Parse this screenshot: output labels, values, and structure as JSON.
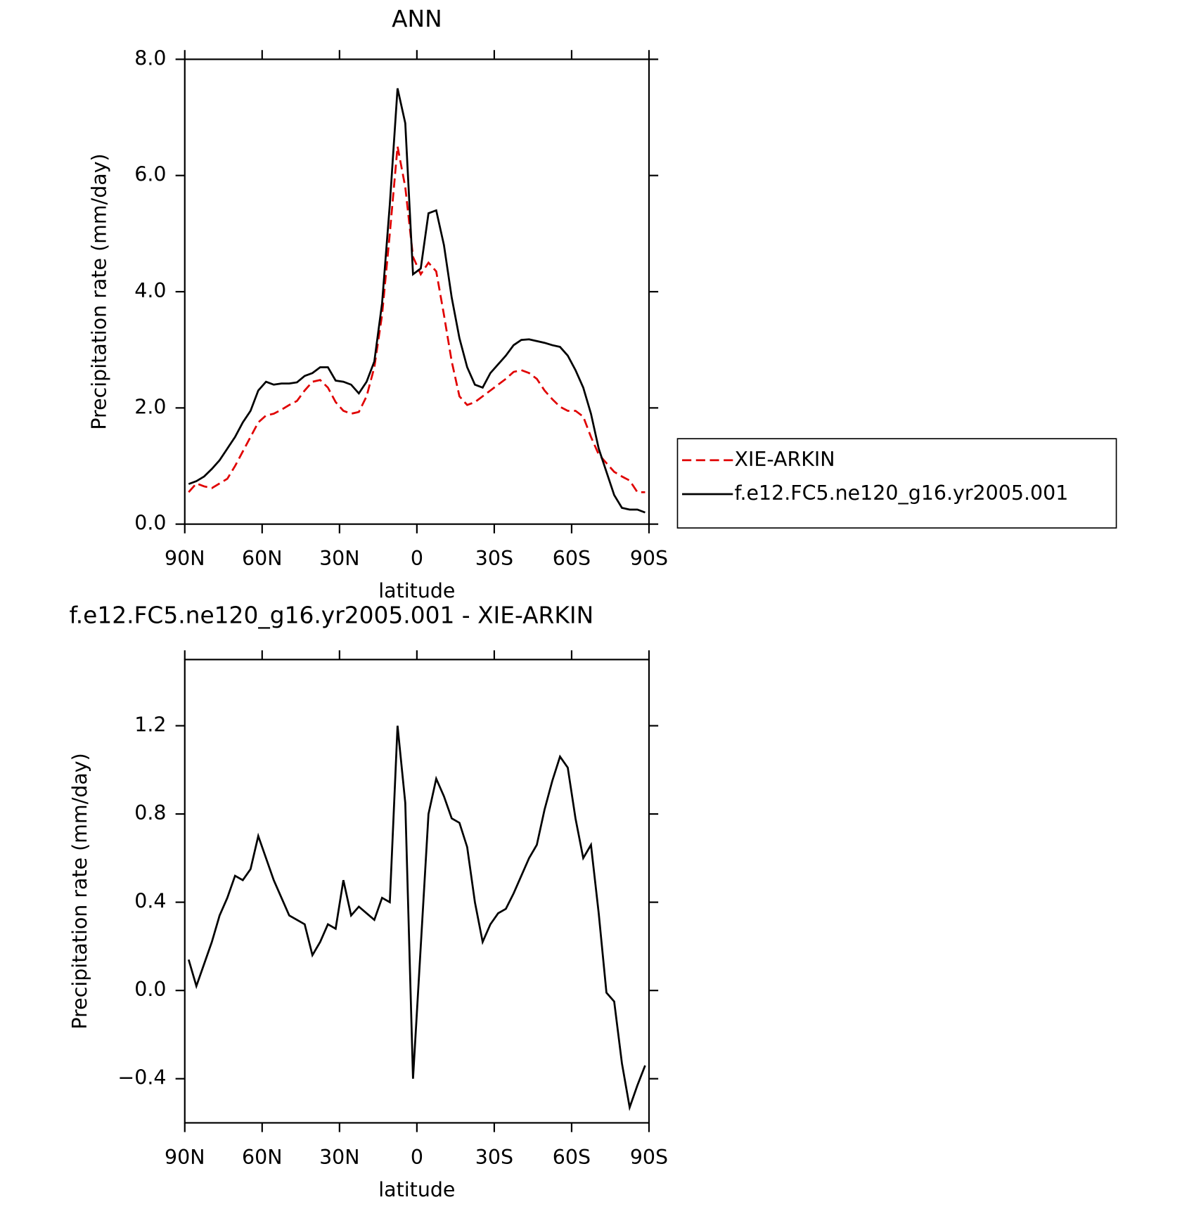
{
  "chart_data": [
    {
      "type": "line",
      "title": "ANN",
      "xlabel": "latitude",
      "ylabel": "Precipitation rate (mm/day)",
      "x": [
        88.5,
        85.5,
        82.5,
        79.5,
        76.5,
        73.5,
        70.5,
        67.5,
        64.5,
        61.5,
        58.5,
        55.5,
        52.5,
        49.5,
        46.5,
        43.5,
        40.5,
        37.5,
        34.5,
        31.5,
        28.5,
        25.5,
        22.5,
        19.5,
        16.5,
        13.5,
        10.5,
        7.5,
        4.5,
        1.5,
        -1.5,
        -4.5,
        -7.5,
        -10.5,
        -13.5,
        -16.5,
        -19.5,
        -22.5,
        -25.5,
        -28.5,
        -31.5,
        -34.5,
        -37.5,
        -40.5,
        -43.5,
        -46.5,
        -49.5,
        -52.5,
        -55.5,
        -58.5,
        -61.5,
        -64.5,
        -67.5,
        -70.5,
        -73.5,
        -76.5,
        -79.5,
        -82.5,
        -85.5,
        -88.5
      ],
      "series": [
        {
          "name": "XIE-ARKIN",
          "color": "#e00000",
          "dashed": true,
          "values": [
            0.55,
            0.7,
            0.65,
            0.62,
            0.7,
            0.78,
            1.0,
            1.25,
            1.5,
            1.75,
            1.87,
            1.9,
            1.97,
            2.05,
            2.12,
            2.3,
            2.45,
            2.48,
            2.35,
            2.1,
            1.95,
            1.9,
            1.93,
            2.2,
            2.7,
            3.6,
            5.0,
            6.5,
            5.8,
            4.6,
            4.3,
            4.5,
            4.35,
            3.6,
            2.8,
            2.2,
            2.05,
            2.1,
            2.2,
            2.3,
            2.4,
            2.5,
            2.62,
            2.65,
            2.6,
            2.5,
            2.3,
            2.15,
            2.02,
            1.95,
            1.95,
            1.85,
            1.5,
            1.2,
            1.05,
            0.9,
            0.82,
            0.75,
            0.55,
            0.55
          ]
        },
        {
          "name": "f.e12.FC5.ne120_g16.yr2005.001",
          "color": "#000000",
          "dashed": false,
          "values": [
            0.69,
            0.74,
            0.82,
            0.95,
            1.1,
            1.3,
            1.5,
            1.75,
            1.95,
            2.3,
            2.45,
            2.4,
            2.42,
            2.42,
            2.44,
            2.55,
            2.6,
            2.7,
            2.7,
            2.47,
            2.45,
            2.4,
            2.25,
            2.45,
            2.8,
            3.8,
            5.5,
            7.5,
            6.9,
            4.3,
            4.4,
            5.35,
            5.4,
            4.8,
            3.9,
            3.2,
            2.7,
            2.4,
            2.35,
            2.6,
            2.75,
            2.9,
            3.08,
            3.17,
            3.18,
            3.15,
            3.12,
            3.08,
            3.05,
            2.9,
            2.65,
            2.35,
            1.9,
            1.3,
            0.9,
            0.5,
            0.28,
            0.25,
            0.25,
            0.2
          ]
        }
      ],
      "xlim": [
        90,
        -90
      ],
      "xticks": [
        {
          "value": 90,
          "label": "90N"
        },
        {
          "value": 60,
          "label": "60N"
        },
        {
          "value": 30,
          "label": "30N"
        },
        0,
        {
          "value": -30,
          "label": "30S"
        },
        {
          "value": -60,
          "label": "60S"
        },
        {
          "value": -90,
          "label": "90S"
        }
      ],
      "ylim": [
        0,
        8
      ],
      "yticks": [
        {
          "value": 0,
          "label": "0.0"
        },
        {
          "value": 2,
          "label": "2.0"
        },
        {
          "value": 4,
          "label": "4.0"
        },
        {
          "value": 6,
          "label": "6.0"
        },
        {
          "value": 8,
          "label": "8.0"
        }
      ],
      "legend": "right"
    },
    {
      "type": "line",
      "title": "f.e12.FC5.ne120_g16.yr2005.001 - XIE-ARKIN",
      "xlabel": "latitude",
      "ylabel": "Precipitation rate (mm/day)",
      "x": [
        88.5,
        85.5,
        82.5,
        79.5,
        76.5,
        73.5,
        70.5,
        67.5,
        64.5,
        61.5,
        58.5,
        55.5,
        52.5,
        49.5,
        46.5,
        43.5,
        40.5,
        37.5,
        34.5,
        31.5,
        28.5,
        25.5,
        22.5,
        19.5,
        16.5,
        13.5,
        10.5,
        7.5,
        4.5,
        1.5,
        -1.5,
        -4.5,
        -7.5,
        -10.5,
        -13.5,
        -16.5,
        -19.5,
        -22.5,
        -25.5,
        -28.5,
        -31.5,
        -34.5,
        -37.5,
        -40.5,
        -43.5,
        -46.5,
        -49.5,
        -52.5,
        -55.5,
        -58.5,
        -61.5,
        -64.5,
        -67.5,
        -70.5,
        -73.5,
        -76.5,
        -79.5,
        -82.5,
        -85.5,
        -88.5
      ],
      "series": [
        {
          "color": "#000000",
          "dashed": false,
          "values": [
            0.14,
            0.02,
            0.12,
            0.22,
            0.34,
            0.42,
            0.52,
            0.5,
            0.55,
            0.7,
            0.6,
            0.5,
            0.42,
            0.34,
            0.32,
            0.3,
            0.16,
            0.22,
            0.3,
            0.28,
            0.5,
            0.34,
            0.38,
            0.35,
            0.32,
            0.42,
            0.4,
            1.2,
            0.85,
            -0.4,
            0.2,
            0.8,
            0.96,
            0.88,
            0.78,
            0.76,
            0.65,
            0.4,
            0.22,
            0.3,
            0.35,
            0.37,
            0.44,
            0.52,
            0.6,
            0.66,
            0.82,
            0.95,
            1.06,
            1.01,
            0.78,
            0.6,
            0.66,
            0.35,
            -0.01,
            -0.05,
            -0.33,
            -0.53,
            -0.43,
            -0.34
          ]
        }
      ],
      "xlim": [
        90,
        -90
      ],
      "xticks": [
        {
          "value": 90,
          "label": "90N"
        },
        {
          "value": 60,
          "label": "60N"
        },
        {
          "value": 30,
          "label": "30N"
        },
        0,
        {
          "value": -30,
          "label": "30S"
        },
        {
          "value": -60,
          "label": "60S"
        },
        {
          "value": -90,
          "label": "90S"
        }
      ],
      "ylim": [
        -0.6,
        1.5
      ],
      "yticks": [
        {
          "value": -0.4,
          "label": "−0.4"
        },
        {
          "value": 0,
          "label": "0.0"
        },
        {
          "value": 0.4,
          "label": "0.4"
        },
        {
          "value": 0.8,
          "label": "0.8"
        },
        {
          "value": 1.2,
          "label": "1.2"
        }
      ]
    }
  ]
}
